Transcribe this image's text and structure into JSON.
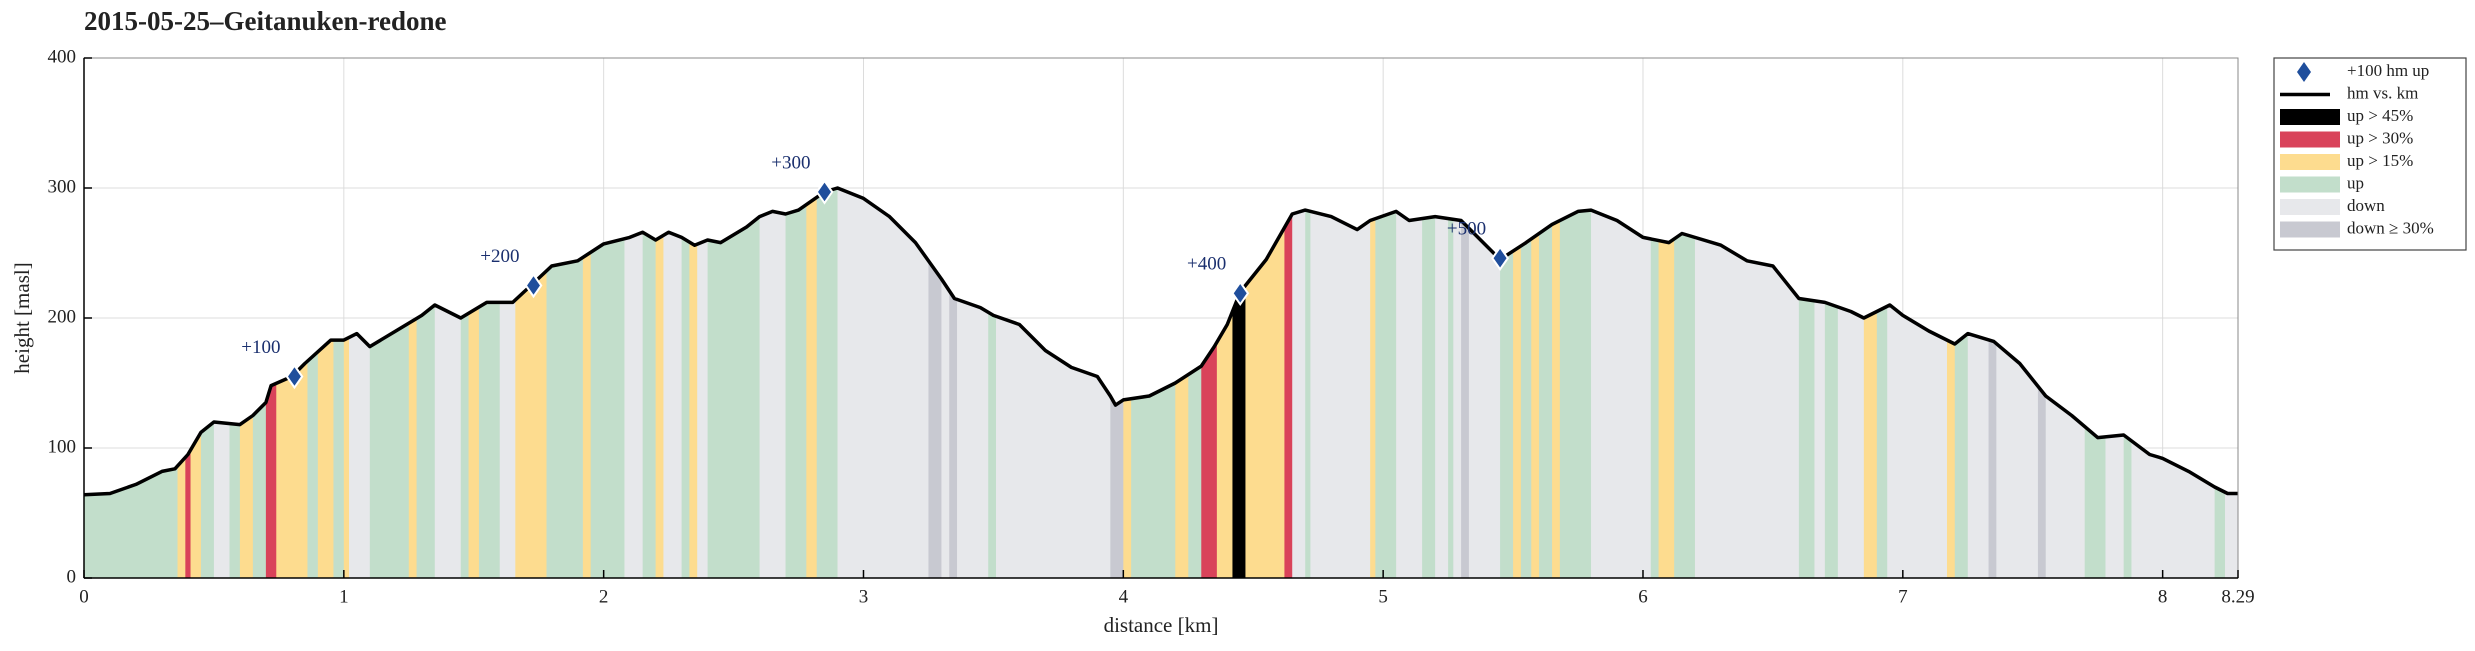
{
  "chart_data": {
    "type": "profile",
    "title": "2015-05-25–Geitanuken-redone",
    "x_label": "distance [km]",
    "y_label": "height [masl]",
    "xlim": [
      0,
      8.29
    ],
    "ylim": [
      0,
      400
    ],
    "xticks": [
      0,
      1,
      2,
      3,
      4,
      5,
      6,
      7,
      8,
      8.29
    ],
    "yticks": [
      0,
      100,
      200,
      300,
      400
    ],
    "grid": true,
    "legend_location": "outside right",
    "series": [
      {
        "name": "hm vs. km",
        "color": "#000000",
        "x": [
          0,
          0.1,
          0.2,
          0.3,
          0.35,
          0.4,
          0.45,
          0.5,
          0.6,
          0.65,
          0.7,
          0.72,
          0.8,
          0.85,
          0.95,
          1.0,
          1.05,
          1.1,
          1.2,
          1.3,
          1.35,
          1.45,
          1.55,
          1.65,
          1.72,
          1.8,
          1.9,
          2.0,
          2.1,
          2.15,
          2.2,
          2.25,
          2.3,
          2.35,
          2.4,
          2.45,
          2.55,
          2.6,
          2.65,
          2.7,
          2.75,
          2.85,
          2.9,
          3.0,
          3.1,
          3.2,
          3.3,
          3.35,
          3.45,
          3.5,
          3.6,
          3.7,
          3.8,
          3.9,
          3.95,
          3.97,
          4.0,
          4.1,
          4.2,
          4.3,
          4.35,
          4.4,
          4.45,
          4.55,
          4.65,
          4.7,
          4.8,
          4.9,
          4.95,
          5.05,
          5.1,
          5.2,
          5.3,
          5.35,
          5.45,
          5.55,
          5.65,
          5.75,
          5.8,
          5.9,
          6.0,
          6.1,
          6.15,
          6.3,
          6.4,
          6.5,
          6.6,
          6.7,
          6.8,
          6.85,
          6.95,
          7.0,
          7.1,
          7.2,
          7.25,
          7.35,
          7.45,
          7.55,
          7.65,
          7.75,
          7.85,
          7.95,
          8.0,
          8.1,
          8.2,
          8.25,
          8.29
        ],
        "values": [
          64,
          65,
          72,
          82,
          84,
          95,
          112,
          120,
          118,
          125,
          135,
          148,
          155,
          165,
          183,
          183,
          188,
          178,
          190,
          202,
          210,
          200,
          212,
          212,
          225,
          240,
          244,
          257,
          262,
          266,
          260,
          266,
          262,
          256,
          260,
          258,
          270,
          278,
          282,
          280,
          283,
          297,
          300,
          292,
          278,
          258,
          230,
          215,
          208,
          202,
          195,
          175,
          162,
          155,
          140,
          133,
          137,
          140,
          150,
          163,
          178,
          195,
          220,
          245,
          280,
          283,
          278,
          268,
          275,
          282,
          275,
          278,
          275,
          265,
          245,
          258,
          272,
          282,
          283,
          275,
          262,
          258,
          265,
          256,
          244,
          240,
          215,
          212,
          205,
          200,
          210,
          202,
          190,
          180,
          188,
          182,
          165,
          140,
          125,
          108,
          110,
          95,
          92,
          82,
          70,
          65,
          65
        ]
      }
    ],
    "markers": {
      "name": "+100 hm up",
      "color": "#1f4e9c",
      "x": [
        0.81,
        1.73,
        2.85,
        4.45,
        5.45
      ],
      "values": [
        155,
        225,
        297,
        219,
        246
      ],
      "labels": [
        "+100",
        "+200",
        "+300",
        "+400",
        "+500"
      ]
    },
    "band_classes": [
      {
        "name": "up > 45%",
        "key": "u45",
        "color": "#000000"
      },
      {
        "name": "up > 30%",
        "key": "u30",
        "color": "#d9435a"
      },
      {
        "name": "up > 15%",
        "key": "u15",
        "color": "#fddc8f"
      },
      {
        "name": "up",
        "key": "u",
        "color": "#c2decb"
      },
      {
        "name": "down",
        "key": "d",
        "color": "#e7e8eb"
      },
      {
        "name": "down ≥ 30%",
        "key": "d30",
        "color": "#c8c9d1"
      }
    ],
    "bands": [
      [
        0,
        0.36,
        "u"
      ],
      [
        0.36,
        0.39,
        "u15"
      ],
      [
        0.39,
        0.41,
        "u30"
      ],
      [
        0.41,
        0.45,
        "u15"
      ],
      [
        0.45,
        0.5,
        "u"
      ],
      [
        0.5,
        0.56,
        "d"
      ],
      [
        0.56,
        0.6,
        "u"
      ],
      [
        0.6,
        0.65,
        "u15"
      ],
      [
        0.65,
        0.7,
        "u"
      ],
      [
        0.7,
        0.74,
        "u30"
      ],
      [
        0.74,
        0.86,
        "u15"
      ],
      [
        0.86,
        0.9,
        "u"
      ],
      [
        0.9,
        0.96,
        "u15"
      ],
      [
        0.96,
        1.0,
        "u"
      ],
      [
        1.0,
        1.02,
        "u15"
      ],
      [
        1.02,
        1.1,
        "d"
      ],
      [
        1.1,
        1.25,
        "u"
      ],
      [
        1.25,
        1.28,
        "u15"
      ],
      [
        1.28,
        1.35,
        "u"
      ],
      [
        1.35,
        1.45,
        "d"
      ],
      [
        1.45,
        1.48,
        "u"
      ],
      [
        1.48,
        1.52,
        "u15"
      ],
      [
        1.52,
        1.6,
        "u"
      ],
      [
        1.6,
        1.66,
        "d"
      ],
      [
        1.66,
        1.78,
        "u15"
      ],
      [
        1.78,
        1.92,
        "u"
      ],
      [
        1.92,
        1.95,
        "u15"
      ],
      [
        1.95,
        2.08,
        "u"
      ],
      [
        2.08,
        2.15,
        "d"
      ],
      [
        2.15,
        2.2,
        "u"
      ],
      [
        2.2,
        2.23,
        "u15"
      ],
      [
        2.23,
        2.3,
        "d"
      ],
      [
        2.3,
        2.33,
        "u"
      ],
      [
        2.33,
        2.36,
        "u15"
      ],
      [
        2.36,
        2.4,
        "d"
      ],
      [
        2.4,
        2.6,
        "u"
      ],
      [
        2.6,
        2.7,
        "d"
      ],
      [
        2.7,
        2.78,
        "u"
      ],
      [
        2.78,
        2.82,
        "u15"
      ],
      [
        2.82,
        2.9,
        "u"
      ],
      [
        2.9,
        3.25,
        "d"
      ],
      [
        3.25,
        3.3,
        "d30"
      ],
      [
        3.3,
        3.33,
        "d"
      ],
      [
        3.33,
        3.36,
        "d30"
      ],
      [
        3.36,
        3.48,
        "d"
      ],
      [
        3.48,
        3.51,
        "u"
      ],
      [
        3.51,
        3.95,
        "d"
      ],
      [
        3.95,
        4.0,
        "d30"
      ],
      [
        4.0,
        4.03,
        "u15"
      ],
      [
        4.03,
        4.2,
        "u"
      ],
      [
        4.2,
        4.25,
        "u15"
      ],
      [
        4.25,
        4.3,
        "u"
      ],
      [
        4.3,
        4.36,
        "u30"
      ],
      [
        4.36,
        4.42,
        "u15"
      ],
      [
        4.42,
        4.47,
        "u45"
      ],
      [
        4.47,
        4.62,
        "u15"
      ],
      [
        4.62,
        4.65,
        "u30"
      ],
      [
        4.65,
        4.7,
        "d"
      ],
      [
        4.7,
        4.72,
        "u"
      ],
      [
        4.72,
        4.95,
        "d"
      ],
      [
        4.95,
        4.97,
        "u15"
      ],
      [
        4.97,
        5.05,
        "u"
      ],
      [
        5.05,
        5.15,
        "d"
      ],
      [
        5.15,
        5.2,
        "u"
      ],
      [
        5.2,
        5.25,
        "d"
      ],
      [
        5.25,
        5.27,
        "u"
      ],
      [
        5.27,
        5.3,
        "d"
      ],
      [
        5.3,
        5.33,
        "d30"
      ],
      [
        5.33,
        5.45,
        "d"
      ],
      [
        5.45,
        5.5,
        "u"
      ],
      [
        5.5,
        5.53,
        "u15"
      ],
      [
        5.53,
        5.57,
        "u"
      ],
      [
        5.57,
        5.6,
        "u15"
      ],
      [
        5.6,
        5.65,
        "u"
      ],
      [
        5.65,
        5.68,
        "u15"
      ],
      [
        5.68,
        5.8,
        "u"
      ],
      [
        5.8,
        6.03,
        "d"
      ],
      [
        6.03,
        6.06,
        "u"
      ],
      [
        6.06,
        6.12,
        "u15"
      ],
      [
        6.12,
        6.2,
        "u"
      ],
      [
        6.2,
        6.6,
        "d"
      ],
      [
        6.6,
        6.66,
        "u"
      ],
      [
        6.66,
        6.7,
        "d"
      ],
      [
        6.7,
        6.75,
        "u"
      ],
      [
        6.75,
        6.85,
        "d"
      ],
      [
        6.85,
        6.9,
        "u15"
      ],
      [
        6.9,
        6.94,
        "u"
      ],
      [
        6.94,
        7.17,
        "d"
      ],
      [
        7.17,
        7.2,
        "u15"
      ],
      [
        7.2,
        7.25,
        "u"
      ],
      [
        7.25,
        7.33,
        "d"
      ],
      [
        7.33,
        7.36,
        "d30"
      ],
      [
        7.36,
        7.52,
        "d"
      ],
      [
        7.52,
        7.55,
        "d30"
      ],
      [
        7.55,
        7.7,
        "d"
      ],
      [
        7.7,
        7.78,
        "u"
      ],
      [
        7.78,
        7.85,
        "d"
      ],
      [
        7.85,
        7.88,
        "u"
      ],
      [
        7.88,
        8.2,
        "d"
      ],
      [
        8.2,
        8.24,
        "u"
      ],
      [
        8.24,
        8.29,
        "d"
      ]
    ]
  }
}
